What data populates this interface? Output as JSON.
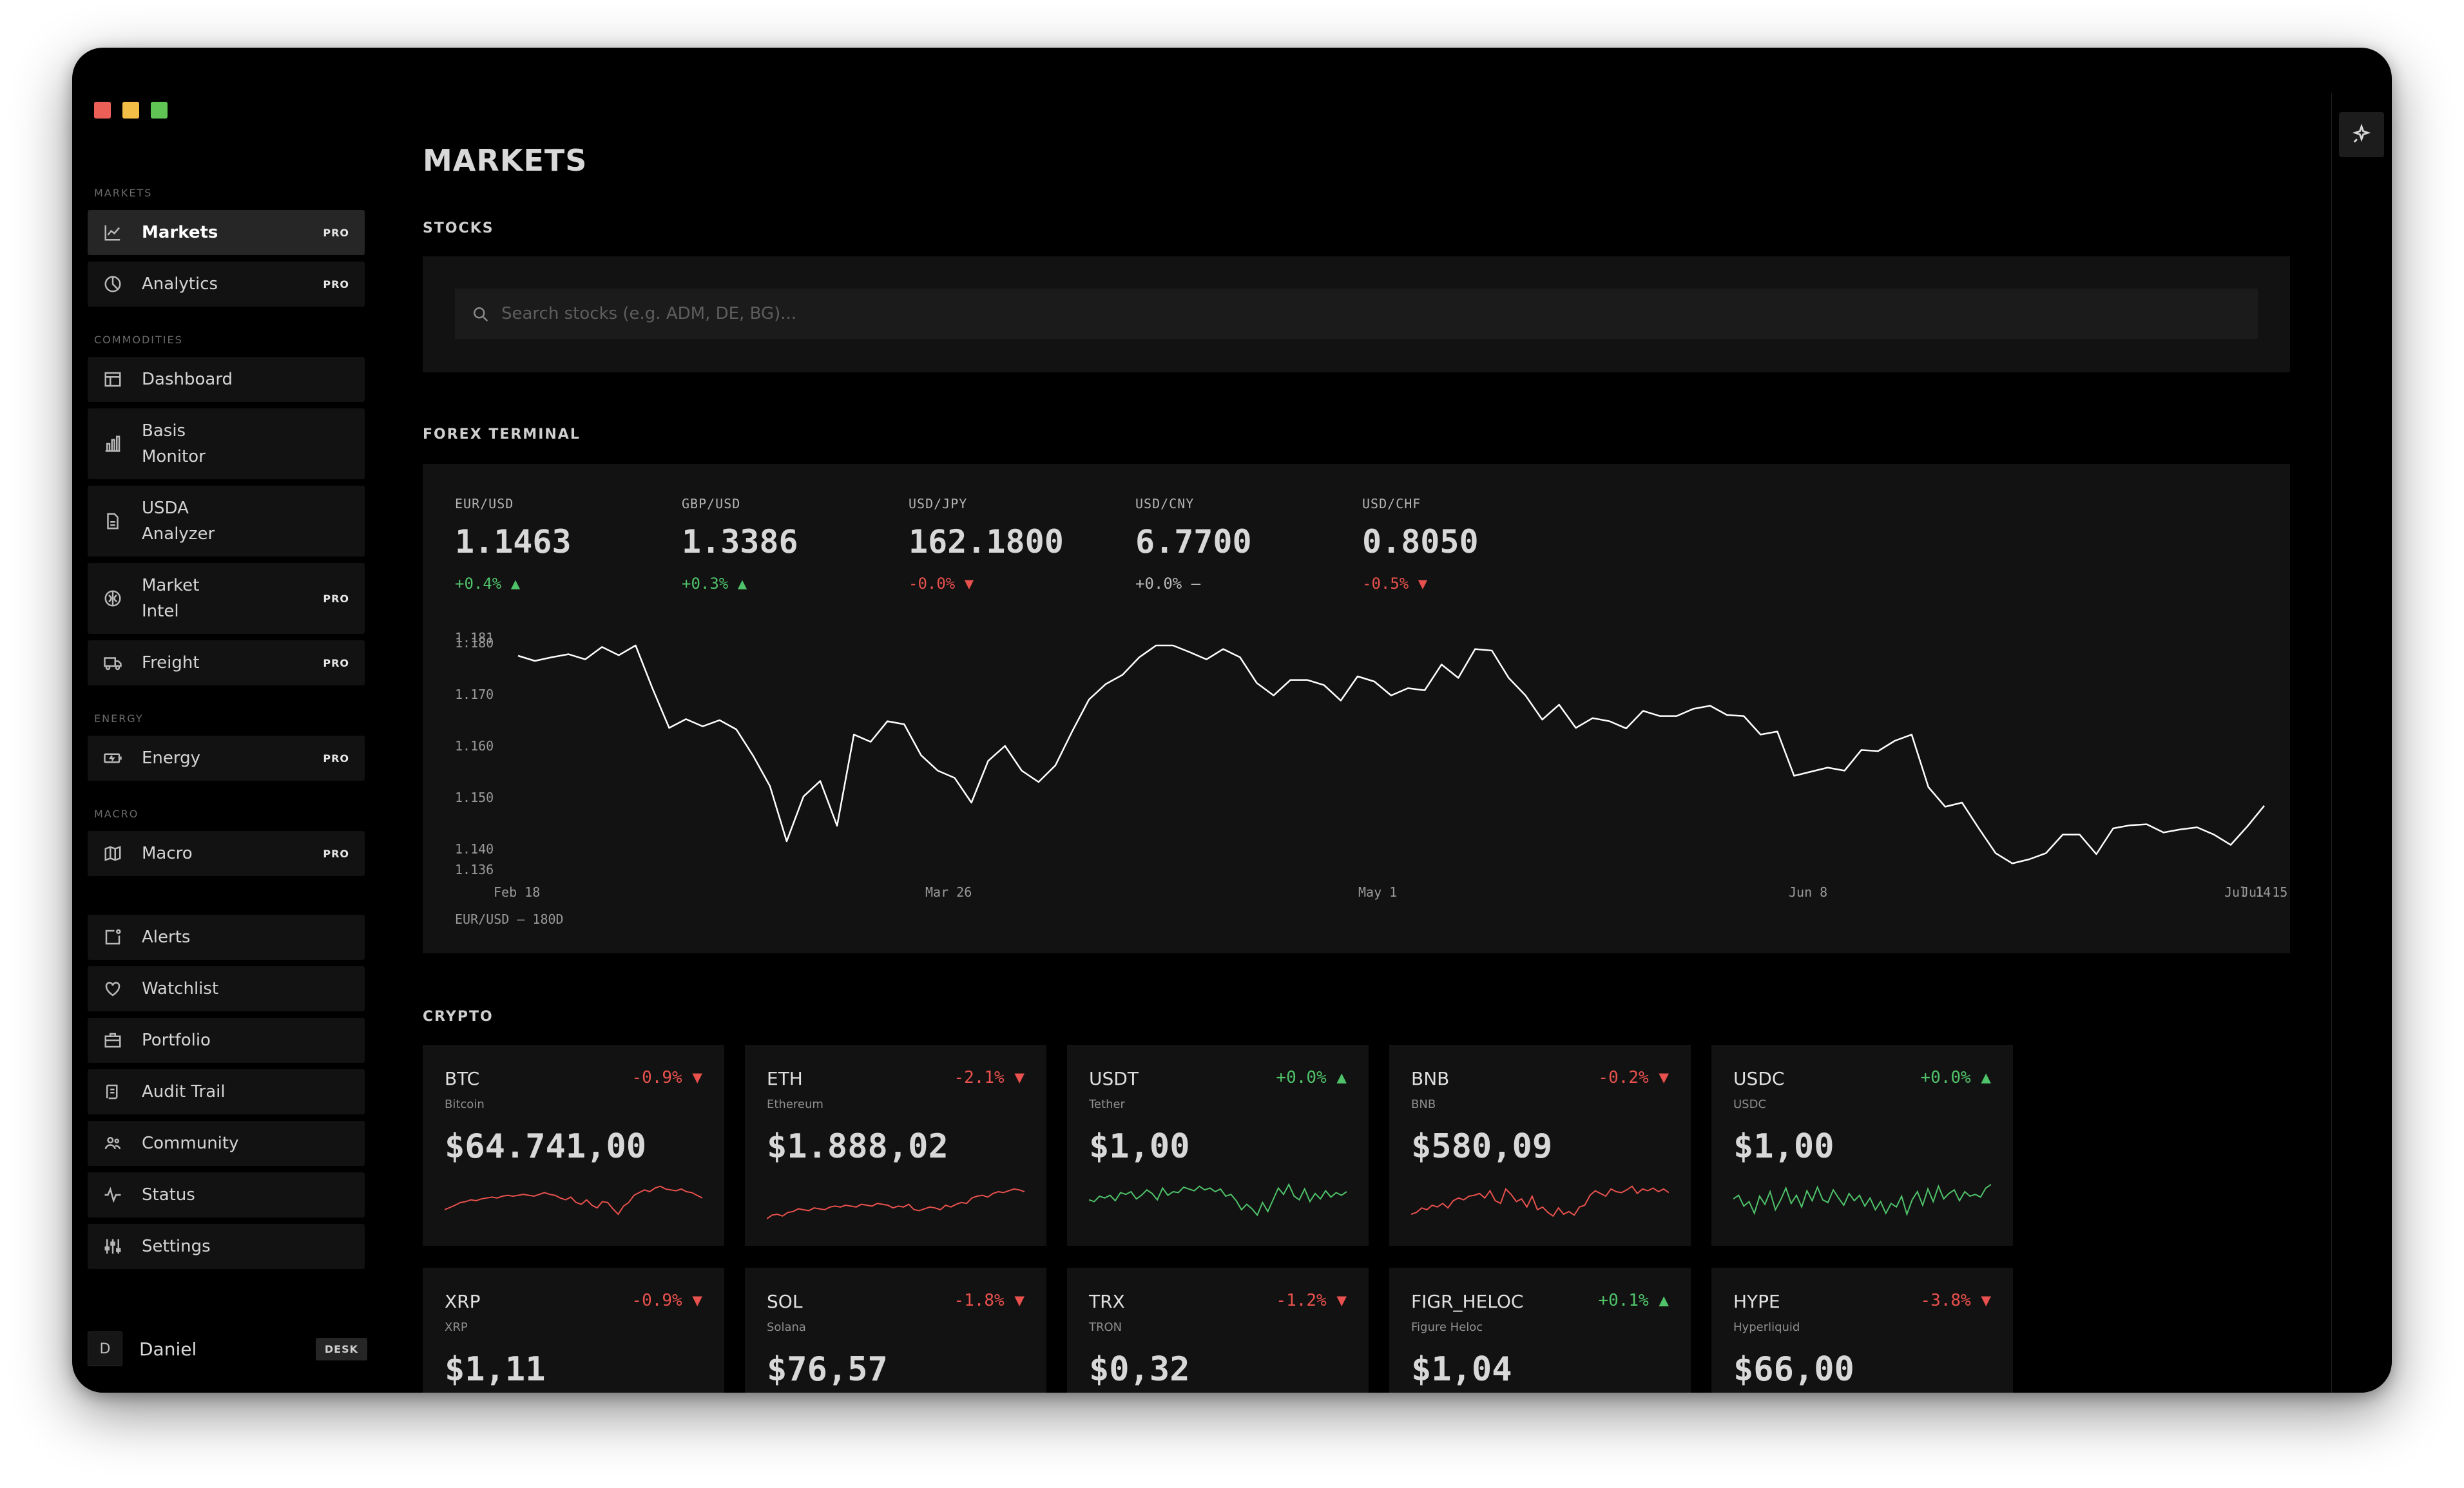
{
  "sidebar": {
    "sections": {
      "markets": "MARKETS",
      "commodities": "COMMODITIES",
      "energy": "ENERGY",
      "macro": "MACRO"
    },
    "items": [
      {
        "label": "Markets",
        "badge": "PRO",
        "icon": "line-chart-icon",
        "active": true
      },
      {
        "label": "Analytics",
        "badge": "PRO",
        "icon": "pie-chart-icon"
      },
      {
        "label": "Dashboard",
        "badge": "",
        "icon": "layout-icon"
      },
      {
        "label": "Basis\nMonitor",
        "badge": "",
        "icon": "bar-chart-icon"
      },
      {
        "label": "USDA\nAnalyzer",
        "badge": "",
        "icon": "document-icon"
      },
      {
        "label": "Market\nIntel",
        "badge": "PRO",
        "icon": "brain-icon"
      },
      {
        "label": "Freight",
        "badge": "PRO",
        "icon": "truck-icon"
      },
      {
        "label": "Energy",
        "badge": "PRO",
        "icon": "battery-icon"
      },
      {
        "label": "Macro",
        "badge": "PRO",
        "icon": "map-icon"
      },
      {
        "label": "Alerts",
        "badge": "",
        "icon": "alert-icon"
      },
      {
        "label": "Watchlist",
        "badge": "",
        "icon": "heart-icon"
      },
      {
        "label": "Portfolio",
        "badge": "",
        "icon": "briefcase-icon"
      },
      {
        "label": "Audit Trail",
        "badge": "",
        "icon": "scroll-icon"
      },
      {
        "label": "Community",
        "badge": "",
        "icon": "users-icon"
      },
      {
        "label": "Status",
        "badge": "",
        "icon": "activity-icon"
      },
      {
        "label": "Settings",
        "badge": "",
        "icon": "sliders-icon"
      }
    ],
    "user": {
      "initial": "D",
      "name": "Daniel",
      "badge": "DESK"
    }
  },
  "main": {
    "title": "MARKETS",
    "stocks": {
      "label": "STOCKS",
      "search_placeholder": "Search stocks (e.g. ADM, DE, BG)..."
    },
    "forex": {
      "label": "FOREX TERMINAL",
      "pairs": [
        {
          "name": "EUR/USD",
          "rate": "1.1463",
          "change": "+0.4% ▲",
          "direction": "up"
        },
        {
          "name": "GBP/USD",
          "rate": "1.3386",
          "change": "+0.3% ▲",
          "direction": "up"
        },
        {
          "name": "USD/JPY",
          "rate": "162.1800",
          "change": "-0.0% ▼",
          "direction": "down"
        },
        {
          "name": "USD/CNY",
          "rate": "6.7700",
          "change": "+0.0% —",
          "direction": "flat"
        },
        {
          "name": "USD/CHF",
          "rate": "0.8050",
          "change": "-0.5% ▼",
          "direction": "down"
        }
      ],
      "chart_caption": "EUR/USD — 180D"
    },
    "crypto": {
      "label": "CRYPTO",
      "coins": [
        {
          "symbol": "BTC",
          "name": "Bitcoin",
          "change": "-0.9% ▼",
          "direction": "down",
          "price": "$64.741,00"
        },
        {
          "symbol": "ETH",
          "name": "Ethereum",
          "change": "-2.1% ▼",
          "direction": "down",
          "price": "$1.888,02"
        },
        {
          "symbol": "USDT",
          "name": "Tether",
          "change": "+0.0% ▲",
          "direction": "up",
          "price": "$1,00"
        },
        {
          "symbol": "BNB",
          "name": "BNB",
          "change": "-0.2% ▼",
          "direction": "down",
          "price": "$580,09"
        },
        {
          "symbol": "USDC",
          "name": "USDC",
          "change": "+0.0% ▲",
          "direction": "up",
          "price": "$1,00"
        },
        {
          "symbol": "XRP",
          "name": "XRP",
          "change": "-0.9% ▼",
          "direction": "down",
          "price": "$1,11"
        },
        {
          "symbol": "SOL",
          "name": "Solana",
          "change": "-1.8% ▼",
          "direction": "down",
          "price": "$76,57"
        },
        {
          "symbol": "TRX",
          "name": "TRON",
          "change": "-1.2% ▼",
          "direction": "down",
          "price": "$0,32"
        },
        {
          "symbol": "FIGR_HELOC",
          "name": "Figure Heloc",
          "change": "+0.1% ▲",
          "direction": "up",
          "price": "$1,04"
        },
        {
          "symbol": "HYPE",
          "name": "Hyperliquid",
          "change": "-3.8% ▼",
          "direction": "down",
          "price": "$66,00"
        }
      ]
    }
  },
  "colors": {
    "up": "#4fc36a",
    "down": "#e8514d",
    "flat": "#b8b8b8",
    "line": "#ffffff"
  },
  "chart_data": {
    "type": "line",
    "ylim": [
      1.136,
      1.181
    ],
    "yticks": [
      1.181,
      1.18,
      1.17,
      1.16,
      1.15,
      1.14,
      1.136
    ],
    "ytick_labels": [
      "1.181",
      "1.180",
      "1.170",
      "1.160",
      "1.150",
      "1.140",
      "1.136"
    ],
    "xtick_labels": [
      "Feb 18",
      "Mar 26",
      "May 1",
      "Jun 8",
      "Jul 14",
      "Jul 15"
    ],
    "grid": false,
    "series": [
      {
        "values": [
          1.1775,
          1.1765,
          1.1772,
          1.1778,
          1.1768,
          1.1792,
          1.1776,
          1.1795,
          1.1712,
          1.1635,
          1.1652,
          1.1638,
          1.165,
          1.1632,
          1.1581,
          1.1522,
          1.1415,
          1.1502,
          1.1532,
          1.1445,
          1.1622,
          1.1608,
          1.1648,
          1.1642,
          1.1582,
          1.1552,
          1.1538,
          1.149,
          1.1571,
          1.16,
          1.1552,
          1.153,
          1.1562,
          1.1628,
          1.169,
          1.172,
          1.1738,
          1.1772,
          1.1795,
          1.1795,
          1.1782,
          1.1768,
          1.1788,
          1.1772,
          1.1722,
          1.1698,
          1.1728,
          1.1728,
          1.1718,
          1.1688,
          1.1735,
          1.1725,
          1.1698,
          1.1712,
          1.1708,
          1.1758,
          1.1732,
          1.1788,
          1.1785,
          1.1732,
          1.1698,
          1.1651,
          1.168,
          1.1635,
          1.1654,
          1.1648,
          1.1634,
          1.1668,
          1.1658,
          1.1658,
          1.1672,
          1.1678,
          1.166,
          1.1658,
          1.1622,
          1.1628,
          1.1542,
          1.155,
          1.1558,
          1.1552,
          1.1592,
          1.159,
          1.161,
          1.1622,
          1.152,
          1.1482,
          1.149,
          1.144,
          1.1392,
          1.1372,
          1.138,
          1.1392,
          1.1428,
          1.1428,
          1.139,
          1.144,
          1.1446,
          1.1448,
          1.1432,
          1.1438,
          1.1442,
          1.1428,
          1.1408,
          1.1444,
          1.1484
        ]
      }
    ]
  },
  "sparklines": [
    [
      0.4,
      0.45,
      0.5,
      0.56,
      0.58,
      0.62,
      0.6,
      0.64,
      0.66,
      0.68,
      0.66,
      0.7,
      0.72,
      0.7,
      0.72,
      0.74,
      0.72,
      0.7,
      0.74,
      0.78,
      0.74,
      0.72,
      0.66,
      0.62,
      0.68,
      0.56,
      0.52,
      0.62,
      0.5,
      0.44,
      0.58,
      0.56,
      0.42,
      0.3,
      0.48,
      0.56,
      0.72,
      0.78,
      0.84,
      0.8,
      0.88,
      0.92,
      0.86,
      0.84,
      0.82,
      0.86,
      0.8,
      0.78,
      0.72,
      0.66
    ],
    [
      0.2,
      0.28,
      0.3,
      0.26,
      0.34,
      0.36,
      0.42,
      0.4,
      0.38,
      0.44,
      0.42,
      0.4,
      0.46,
      0.48,
      0.46,
      0.5,
      0.48,
      0.46,
      0.52,
      0.5,
      0.48,
      0.54,
      0.52,
      0.5,
      0.44,
      0.48,
      0.46,
      0.52,
      0.4,
      0.38,
      0.42,
      0.46,
      0.44,
      0.4,
      0.5,
      0.46,
      0.52,
      0.56,
      0.54,
      0.66,
      0.7,
      0.72,
      0.68,
      0.76,
      0.8,
      0.78,
      0.82,
      0.86,
      0.84,
      0.8
    ],
    [
      0.62,
      0.58,
      0.7,
      0.66,
      0.72,
      0.6,
      0.78,
      0.74,
      0.8,
      0.64,
      0.72,
      0.84,
      0.76,
      0.62,
      0.88,
      0.72,
      0.8,
      0.78,
      0.9,
      0.86,
      0.82,
      0.92,
      0.84,
      0.88,
      0.8,
      0.86,
      0.7,
      0.74,
      0.6,
      0.4,
      0.52,
      0.42,
      0.28,
      0.56,
      0.36,
      0.62,
      0.88,
      0.74,
      0.96,
      0.7,
      0.62,
      0.86,
      0.58,
      0.76,
      0.64,
      0.82,
      0.68,
      0.78,
      0.72,
      0.8
    ],
    [
      0.3,
      0.34,
      0.44,
      0.4,
      0.5,
      0.46,
      0.54,
      0.44,
      0.6,
      0.66,
      0.62,
      0.7,
      0.72,
      0.76,
      0.66,
      0.82,
      0.6,
      0.54,
      0.86,
      0.74,
      0.58,
      0.64,
      0.46,
      0.7,
      0.4,
      0.46,
      0.34,
      0.26,
      0.44,
      0.3,
      0.36,
      0.28,
      0.46,
      0.5,
      0.72,
      0.82,
      0.76,
      0.7,
      0.86,
      0.8,
      0.78,
      0.84,
      0.92,
      0.76,
      0.86,
      0.82,
      0.88,
      0.8,
      0.86,
      0.78
    ],
    [
      0.64,
      0.72,
      0.48,
      0.58,
      0.32,
      0.7,
      0.52,
      0.8,
      0.4,
      0.62,
      0.88,
      0.54,
      0.72,
      0.46,
      0.82,
      0.6,
      0.9,
      0.62,
      0.56,
      0.84,
      0.66,
      0.5,
      0.76,
      0.6,
      0.72,
      0.48,
      0.66,
      0.4,
      0.58,
      0.32,
      0.54,
      0.46,
      0.7,
      0.3,
      0.62,
      0.8,
      0.5,
      0.86,
      0.58,
      0.92,
      0.64,
      0.76,
      0.84,
      0.6,
      0.8,
      0.7,
      0.74,
      0.68,
      0.88,
      0.96
    ]
  ]
}
